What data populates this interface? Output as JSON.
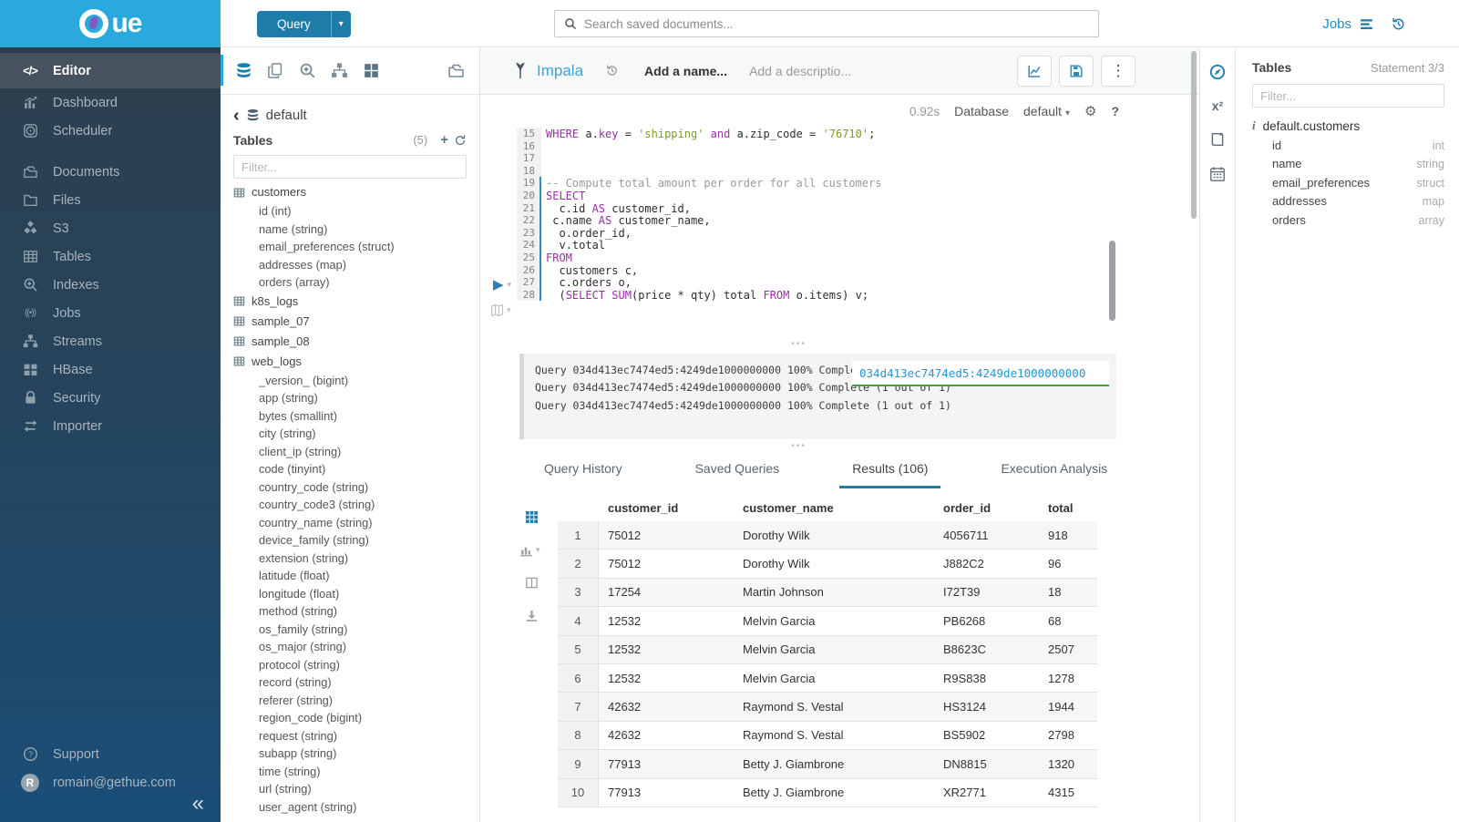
{
  "topbar": {
    "query": "Query",
    "search_placeholder": "Search saved documents...",
    "jobs": "Jobs"
  },
  "sidebar": {
    "logo_text": "ue",
    "collapse": "«",
    "items": [
      {
        "label": "Editor",
        "icon": "code",
        "cls": "active"
      },
      {
        "label": "Dashboard",
        "icon": "dashboard"
      },
      {
        "label": "Scheduler",
        "icon": "scheduler"
      },
      {
        "label": "Documents",
        "icon": "documents",
        "cls": "gap"
      },
      {
        "label": "Files",
        "icon": "folder"
      },
      {
        "label": "S3",
        "icon": "cubes"
      },
      {
        "label": "Tables",
        "icon": "table"
      },
      {
        "label": "Indexes",
        "icon": "search-plus"
      },
      {
        "label": "Jobs",
        "icon": "signal"
      },
      {
        "label": "Streams",
        "icon": "sitemap"
      },
      {
        "label": "HBase",
        "icon": "blocks"
      },
      {
        "label": "Security",
        "icon": "lock"
      },
      {
        "label": "Importer",
        "icon": "swap"
      }
    ],
    "footer": [
      {
        "label": "Support",
        "icon": "question-circle"
      },
      {
        "label": "romain@gethue.com",
        "icon": "avatar"
      }
    ]
  },
  "left_panel": {
    "breadcrumb": "default",
    "title": "Tables",
    "count": "(5)",
    "filter_placeholder": "Filter...",
    "items": [
      {
        "label": "customers",
        "kind": "table",
        "icon": "table-mini"
      },
      {
        "label": "id (int)",
        "kind": "col"
      },
      {
        "label": "name (string)",
        "kind": "col"
      },
      {
        "label": "email_preferences (struct)",
        "kind": "col"
      },
      {
        "label": "addresses (map)",
        "kind": "col"
      },
      {
        "label": "orders (array)",
        "kind": "col"
      },
      {
        "label": "k8s_logs",
        "kind": "table",
        "icon": "table-mini"
      },
      {
        "label": "sample_07",
        "kind": "table",
        "icon": "table-mini"
      },
      {
        "label": "sample_08",
        "kind": "table",
        "icon": "table-mini"
      },
      {
        "label": "web_logs",
        "kind": "table",
        "icon": "table-mini"
      },
      {
        "label": "_version_ (bigint)",
        "kind": "col"
      },
      {
        "label": "app (string)",
        "kind": "col"
      },
      {
        "label": "bytes (smallint)",
        "kind": "col"
      },
      {
        "label": "city (string)",
        "kind": "col"
      },
      {
        "label": "client_ip (string)",
        "kind": "col"
      },
      {
        "label": "code (tinyint)",
        "kind": "col"
      },
      {
        "label": "country_code (string)",
        "kind": "col"
      },
      {
        "label": "country_code3 (string)",
        "kind": "col"
      },
      {
        "label": "country_name (string)",
        "kind": "col"
      },
      {
        "label": "device_family (string)",
        "kind": "col"
      },
      {
        "label": "extension (string)",
        "kind": "col"
      },
      {
        "label": "latitude (float)",
        "kind": "col"
      },
      {
        "label": "longitude (float)",
        "kind": "col"
      },
      {
        "label": "method (string)",
        "kind": "col"
      },
      {
        "label": "os_family (string)",
        "kind": "col"
      },
      {
        "label": "os_major (string)",
        "kind": "col"
      },
      {
        "label": "protocol (string)",
        "kind": "col"
      },
      {
        "label": "record (string)",
        "kind": "col"
      },
      {
        "label": "referer (string)",
        "kind": "col"
      },
      {
        "label": "region_code (bigint)",
        "kind": "col"
      },
      {
        "label": "request (string)",
        "kind": "col"
      },
      {
        "label": "subapp (string)",
        "kind": "col"
      },
      {
        "label": "time (string)",
        "kind": "col"
      },
      {
        "label": "url (string)",
        "kind": "col"
      },
      {
        "label": "user_agent (string)",
        "kind": "col"
      }
    ]
  },
  "editor": {
    "engine": "Impala",
    "name_placeholder": "Add a name...",
    "desc_placeholder": "Add a descriptio...",
    "duration": "0.92s",
    "database_label": "Database",
    "database_value": "default",
    "lines": [
      {
        "no": "15",
        "tokens": [
          {
            "t": "WHERE",
            "c": "kw"
          },
          {
            "t": " a.",
            "c": "pl"
          },
          {
            "t": "key",
            "c": "kw"
          },
          {
            "t": " = ",
            "c": "pl"
          },
          {
            "t": "'shipping'",
            "c": "str"
          },
          {
            "t": " ",
            "c": "pl"
          },
          {
            "t": "and",
            "c": "kw"
          },
          {
            "t": " a.zip_code = ",
            "c": "pl"
          },
          {
            "t": "'76710'",
            "c": "str"
          },
          {
            "t": ";",
            "c": "pl"
          }
        ]
      },
      {
        "no": "16",
        "tokens": []
      },
      {
        "no": "17",
        "tokens": []
      },
      {
        "no": "18",
        "tokens": []
      },
      {
        "no": "19",
        "cls": "active",
        "tokens": [
          {
            "t": "-- Compute total amount per order for all customers",
            "c": "cmt"
          }
        ]
      },
      {
        "no": "20",
        "cls": "active",
        "tokens": [
          {
            "t": "SELECT",
            "c": "kw"
          }
        ]
      },
      {
        "no": "21",
        "cls": "active",
        "tokens": [
          {
            "t": "  c.id ",
            "c": "pl"
          },
          {
            "t": "AS",
            "c": "kw"
          },
          {
            "t": " customer_id,",
            "c": "pl"
          }
        ]
      },
      {
        "no": "22",
        "cls": "active",
        "tokens": [
          {
            "t": " c.name ",
            "c": "pl"
          },
          {
            "t": "AS",
            "c": "kw"
          },
          {
            "t": " customer_name,",
            "c": "pl"
          }
        ]
      },
      {
        "no": "23",
        "cls": "active",
        "tokens": [
          {
            "t": "  o.order_id,",
            "c": "pl"
          }
        ]
      },
      {
        "no": "24",
        "cls": "active",
        "tokens": [
          {
            "t": "  v.total",
            "c": "pl"
          }
        ]
      },
      {
        "no": "25",
        "cls": "active",
        "tokens": [
          {
            "t": "FROM",
            "c": "kw"
          }
        ]
      },
      {
        "no": "26",
        "cls": "active",
        "tokens": [
          {
            "t": "  customers c,",
            "c": "pl"
          }
        ]
      },
      {
        "no": "27",
        "cls": "active",
        "tokens": [
          {
            "t": "  c.orders o,",
            "c": "pl"
          }
        ]
      },
      {
        "no": "28",
        "cls": "active",
        "tokens": [
          {
            "t": "  (",
            "c": "pl"
          },
          {
            "t": "SELECT",
            "c": "kw"
          },
          {
            "t": " ",
            "c": "pl"
          },
          {
            "t": "SUM",
            "c": "kw"
          },
          {
            "t": "(price * qty) total ",
            "c": "pl"
          },
          {
            "t": "FROM",
            "c": "kw"
          },
          {
            "t": " o.items) v;",
            "c": "pl"
          }
        ]
      }
    ]
  },
  "logs": {
    "lines": [
      "Query 034d413ec7474ed5:4249de1000000000 100% Complete (1 out of 1)",
      "Query 034d413ec7474ed5:4249de1000000000 100% Complete (1 out of 1)",
      "Query 034d413ec7474ed5:4249de1000000000 100% Complete (1 out of 1)"
    ],
    "overlay": "034d413ec7474ed5:4249de1000000000"
  },
  "tabs": [
    {
      "label": "Query History"
    },
    {
      "label": "Saved Queries"
    },
    {
      "label": "Results (106)",
      "cls": "active"
    },
    {
      "label": "Execution Analysis"
    }
  ],
  "results": {
    "headers": [
      "customer_id",
      "customer_name",
      "order_id",
      "total"
    ],
    "rows": [
      {
        "n": "1",
        "c1": "75012",
        "c2": "Dorothy Wilk",
        "c3": "4056711",
        "c4": "918",
        "cls": "odd"
      },
      {
        "n": "2",
        "c1": "75012",
        "c2": "Dorothy Wilk",
        "c3": "J882C2",
        "c4": "96"
      },
      {
        "n": "3",
        "c1": "17254",
        "c2": "Martin Johnson",
        "c3": "I72T39",
        "c4": "18",
        "cls": "odd"
      },
      {
        "n": "4",
        "c1": "12532",
        "c2": "Melvin Garcia",
        "c3": "PB6268",
        "c4": "68"
      },
      {
        "n": "5",
        "c1": "12532",
        "c2": "Melvin Garcia",
        "c3": "B8623C",
        "c4": "2507",
        "cls": "odd"
      },
      {
        "n": "6",
        "c1": "12532",
        "c2": "Melvin Garcia",
        "c3": "R9S838",
        "c4": "1278"
      },
      {
        "n": "7",
        "c1": "42632",
        "c2": "Raymond S. Vestal",
        "c3": "HS3124",
        "c4": "1944",
        "cls": "odd"
      },
      {
        "n": "8",
        "c1": "42632",
        "c2": "Raymond S. Vestal",
        "c3": "BS5902",
        "c4": "2798"
      },
      {
        "n": "9",
        "c1": "77913",
        "c2": "Betty J. Giambrone",
        "c3": "DN8815",
        "c4": "1320",
        "cls": "odd"
      },
      {
        "n": "10",
        "c1": "77913",
        "c2": "Betty J. Giambrone",
        "c3": "XR2771",
        "c4": "4315"
      }
    ]
  },
  "right_panel": {
    "title": "Tables",
    "statement": "Statement 3/3",
    "filter_placeholder": "Filter...",
    "table": "default.customers",
    "columns": [
      {
        "name": "id",
        "type": "int"
      },
      {
        "name": "name",
        "type": "string"
      },
      {
        "name": "email_preferences",
        "type": "struct"
      },
      {
        "name": "addresses",
        "type": "map"
      },
      {
        "name": "orders",
        "type": "array"
      }
    ]
  },
  "colors": {
    "accent": "#1d7fad",
    "top_band": "#2aa9dd",
    "keyword": "#9b2fa7",
    "string": "#7d9a27",
    "comment": "#9b9b93",
    "overlay_link": "#2196d3",
    "overlay_underline": "#43a047",
    "leaf": "#7e5bc0"
  }
}
